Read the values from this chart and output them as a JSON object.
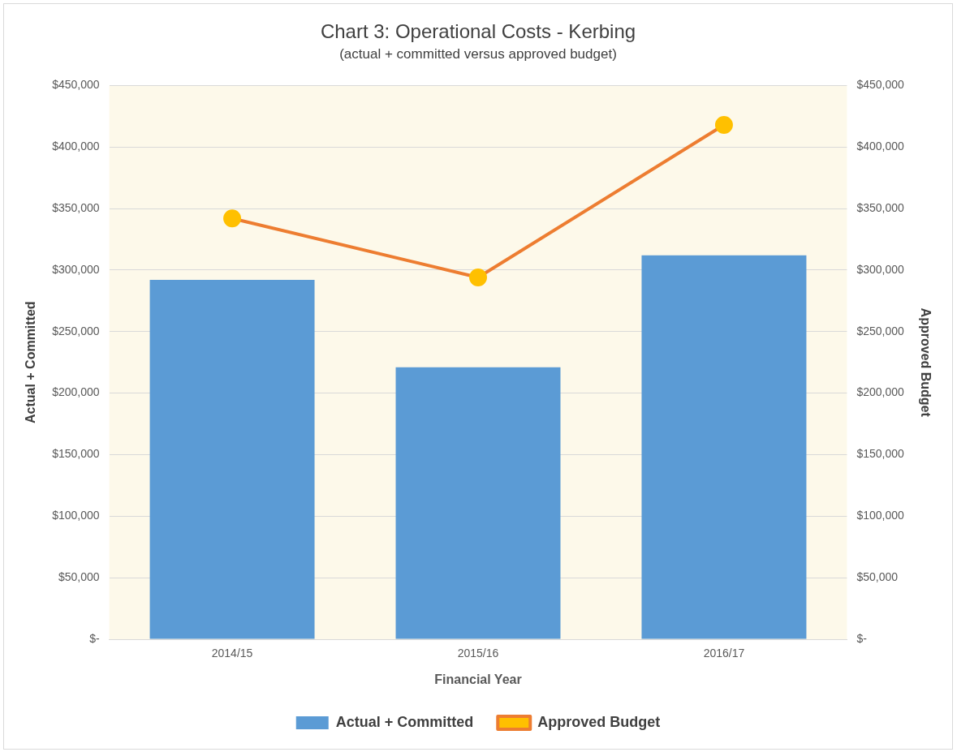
{
  "chart_data": {
    "type": "bar",
    "title": "Chart 3: Operational Costs - Kerbing",
    "subtitle": "(actual + committed versus approved budget)",
    "xlabel": "Financial Year",
    "ylabel": "Actual + Committed",
    "y2label": "Approved Budget",
    "categories": [
      "2014/15",
      "2015/16",
      "2016/17"
    ],
    "series": [
      {
        "name": "Actual + Committed",
        "color": "#5b9bd5",
        "values": [
          292000,
          221000,
          312000
        ]
      },
      {
        "name": "Approved Budget",
        "type": "line",
        "axis": "y2",
        "color": "#ed7d31",
        "colors": [
          "#ffc000",
          "#ffc000",
          "#ffc000"
        ],
        "marker": "circle",
        "values": [
          342000,
          294000,
          418000
        ]
      }
    ],
    "ylim": [
      0,
      450000
    ],
    "yticks": [
      {
        "value": 0,
        "label": "$-"
      },
      {
        "value": 50000,
        "label": "$50,000"
      },
      {
        "value": 100000,
        "label": "$100,000"
      },
      {
        "value": 150000,
        "label": "$150,000"
      },
      {
        "value": 200000,
        "label": "$200,000"
      },
      {
        "value": 250000,
        "label": "$250,000"
      },
      {
        "value": 300000,
        "label": "$300,000"
      },
      {
        "value": 350000,
        "label": "$350,000"
      },
      {
        "value": 400000,
        "label": "$400,000"
      },
      {
        "value": 450000,
        "label": "$450,000"
      }
    ],
    "y2lim": [
      0,
      450000
    ],
    "y2ticks": [
      {
        "value": 0,
        "label": "$-"
      },
      {
        "value": 50000,
        "label": "$50,000"
      },
      {
        "value": 100000,
        "label": "$100,000"
      },
      {
        "value": 150000,
        "label": "$150,000"
      },
      {
        "value": 200000,
        "label": "$200,000"
      },
      {
        "value": 250000,
        "label": "$250,000"
      },
      {
        "value": 300000,
        "label": "$300,000"
      },
      {
        "value": 350000,
        "label": "$350,000"
      },
      {
        "value": 400000,
        "label": "$400,000"
      },
      {
        "value": 450000,
        "label": "$450,000"
      }
    ],
    "grid": "y",
    "legend": "bottom"
  }
}
